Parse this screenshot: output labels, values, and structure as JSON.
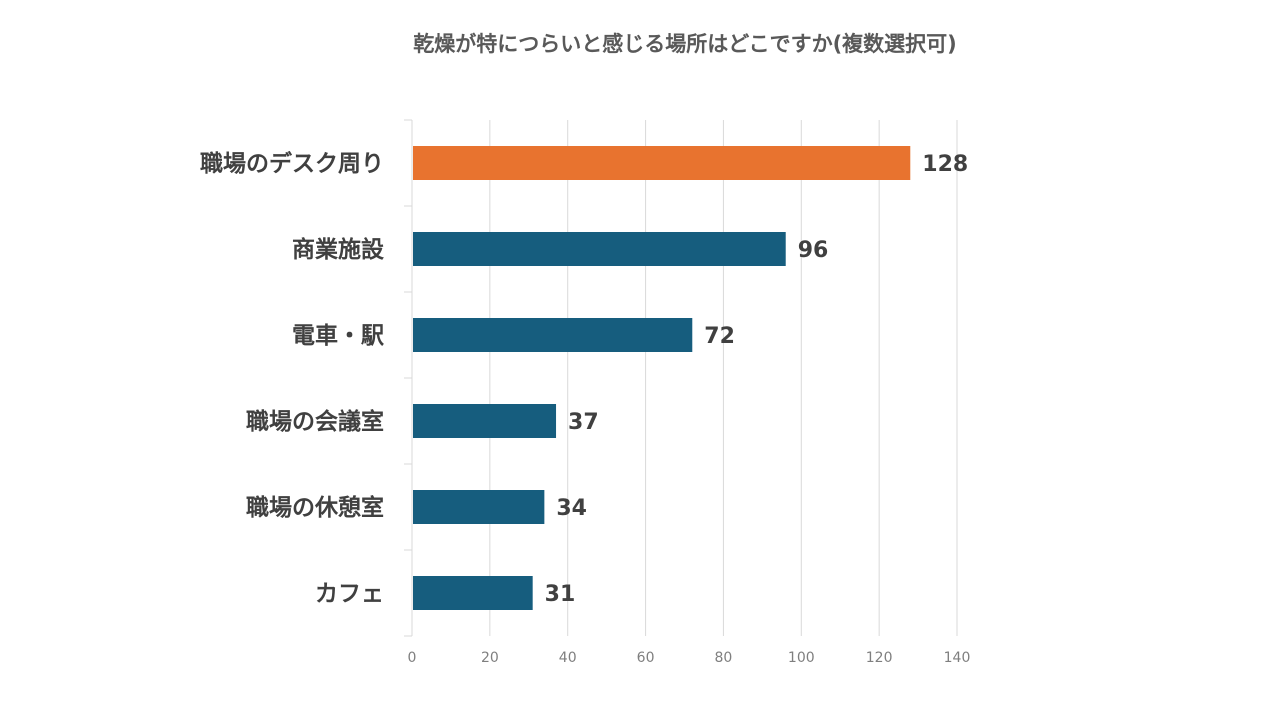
{
  "chart_data": {
    "type": "bar",
    "orientation": "horizontal",
    "title": "乾燥が特につらいと感じる場所はどこですか(複数選択可)",
    "categories": [
      "職場のデスク周り",
      "商業施設",
      "電車・駅",
      "職場の会議室",
      "職場の休憩室",
      "カフェ"
    ],
    "values": [
      128,
      96,
      72,
      37,
      34,
      31
    ],
    "xlim": [
      0,
      140
    ],
    "xticks": [
      0,
      20,
      40,
      60,
      80,
      100,
      120,
      140
    ],
    "tick_labels": [
      "0",
      "20",
      "40",
      "60",
      "80",
      "100",
      "120",
      "140"
    ],
    "grid": true,
    "legend": "none",
    "colors": {
      "highlight": "#E8732F",
      "default": "#165D7E",
      "grid": "#D9D9D9"
    },
    "highlight_index": 0
  }
}
